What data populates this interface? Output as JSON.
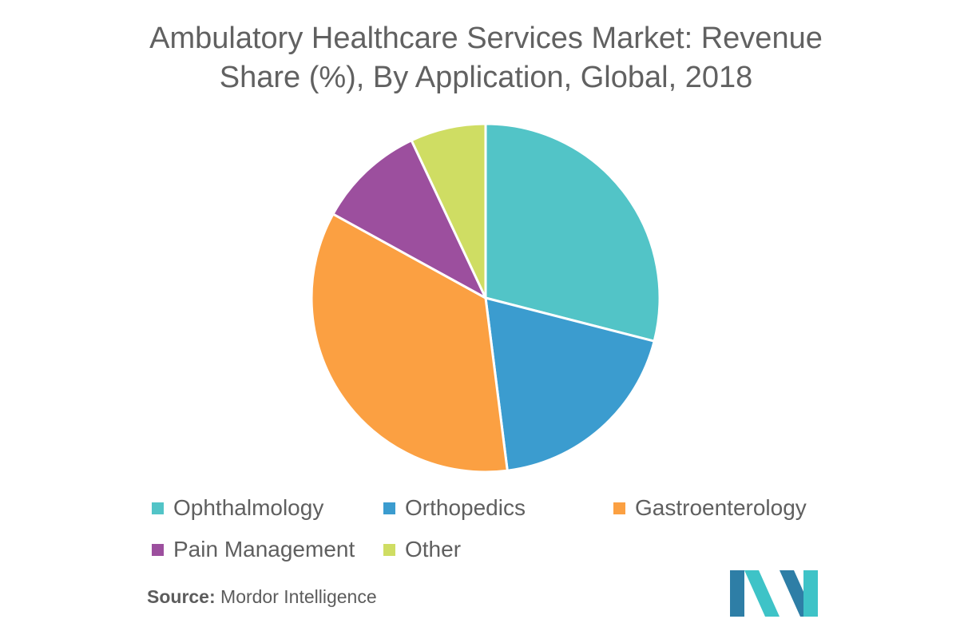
{
  "chart_data": {
    "type": "pie",
    "title_line1": "Ambulatory Healthcare Services Market: Revenue",
    "title_line2": "Share (%), By Application, Global, 2018",
    "slices": [
      {
        "label": "Ophthalmology",
        "value": 29,
        "color": "#52c4c7"
      },
      {
        "label": "Orthopedics",
        "value": 19,
        "color": "#3b9ccf"
      },
      {
        "label": "Gastroenterology",
        "value": 35,
        "color": "#fba042"
      },
      {
        "label": "Pain Management",
        "value": 10,
        "color": "#9c4f9e"
      },
      {
        "label": "Other",
        "value": 7,
        "color": "#cfdd63"
      }
    ],
    "legend_position": "bottom"
  },
  "source": {
    "label": "Source:",
    "text": "Mordor Intelligence"
  },
  "logo": {
    "icon": "mordor-intelligence-logo-icon",
    "colors": [
      "#2e7ea6",
      "#3ec3c7"
    ]
  }
}
